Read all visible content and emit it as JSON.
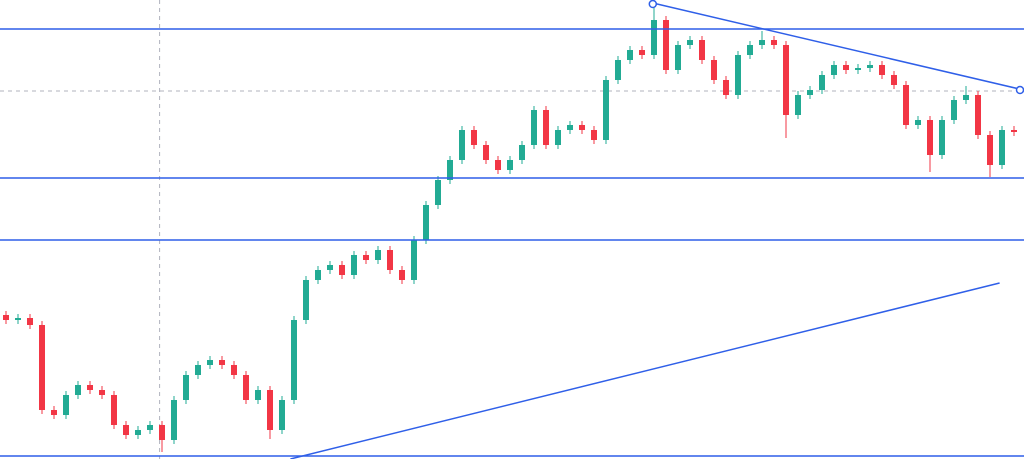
{
  "chart_data": {
    "type": "candlestick",
    "open": [
      144,
      139,
      141,
      134,
      49,
      44,
      64,
      74,
      69,
      64,
      34,
      24,
      29,
      34,
      19,
      59,
      84,
      94,
      99,
      94,
      84,
      59,
      69,
      29,
      59,
      139,
      179,
      189,
      194,
      184,
      204,
      199,
      209,
      189,
      179,
      219,
      254,
      279,
      299,
      329,
      314,
      299,
      289,
      299,
      314,
      349,
      314,
      329,
      334,
      329,
      319,
      379,
      399,
      409,
      404,
      439,
      389,
      414,
      419,
      399,
      379,
      364,
      404,
      414,
      419,
      414,
      344,
      364,
      369,
      384,
      394,
      389,
      391,
      394,
      384,
      374,
      334,
      339,
      304,
      339,
      359,
      364,
      324,
      294,
      329
    ],
    "high": [
      148,
      145,
      145,
      138,
      53,
      68,
      78,
      78,
      73,
      68,
      38,
      33,
      38,
      38,
      63,
      88,
      98,
      103,
      103,
      98,
      88,
      73,
      73,
      63,
      143,
      183,
      193,
      198,
      198,
      208,
      208,
      213,
      213,
      193,
      223,
      258,
      283,
      303,
      333,
      333,
      318,
      303,
      303,
      318,
      353,
      353,
      333,
      338,
      338,
      333,
      383,
      403,
      413,
      413,
      456,
      443,
      418,
      423,
      423,
      403,
      383,
      408,
      418,
      428,
      423,
      418,
      368,
      373,
      388,
      398,
      398,
      395,
      398,
      398,
      388,
      378,
      343,
      343,
      343,
      363,
      373,
      368,
      328,
      333,
      333
    ],
    "low": [
      135,
      135,
      130,
      45,
      40,
      40,
      60,
      65,
      60,
      30,
      20,
      20,
      25,
      7,
      15,
      55,
      80,
      90,
      90,
      80,
      55,
      55,
      20,
      25,
      55,
      135,
      175,
      185,
      180,
      180,
      195,
      195,
      185,
      175,
      175,
      215,
      250,
      275,
      295,
      310,
      295,
      285,
      285,
      295,
      310,
      310,
      310,
      325,
      325,
      315,
      315,
      375,
      395,
      400,
      400,
      385,
      385,
      410,
      395,
      375,
      360,
      360,
      400,
      410,
      410,
      321,
      340,
      360,
      365,
      380,
      385,
      385,
      387,
      380,
      370,
      330,
      330,
      287,
      300,
      335,
      355,
      320,
      282,
      290,
      323
    ],
    "close": [
      139,
      141,
      134,
      49,
      44,
      64,
      74,
      69,
      64,
      34,
      24,
      29,
      34,
      19,
      59,
      84,
      94,
      99,
      94,
      84,
      59,
      69,
      29,
      59,
      139,
      179,
      189,
      194,
      184,
      204,
      199,
      209,
      189,
      179,
      219,
      254,
      279,
      299,
      329,
      314,
      299,
      289,
      299,
      314,
      349,
      314,
      329,
      334,
      329,
      319,
      379,
      399,
      409,
      404,
      439,
      389,
      414,
      419,
      399,
      379,
      364,
      404,
      414,
      419,
      414,
      344,
      364,
      369,
      384,
      394,
      389,
      391,
      394,
      384,
      374,
      334,
      339,
      304,
      339,
      359,
      364,
      324,
      294,
      329,
      327
    ],
    "up_color": "#22ab94",
    "down_color": "#f23645",
    "line_color": "#2f5fe8",
    "ylim": [
      0,
      459
    ],
    "levels": [
      430,
      281,
      219,
      3
    ],
    "trendlines": [
      {
        "points": [
          [
            53.9,
            456
          ],
          [
            84.8,
            369
          ]
        ],
        "handles": true
      },
      {
        "points": [
          [
            23.7,
            0
          ],
          [
            82.8,
            176
          ]
        ],
        "handles": false
      }
    ],
    "crosshair": {
      "x": 12.8,
      "y": 368
    }
  }
}
